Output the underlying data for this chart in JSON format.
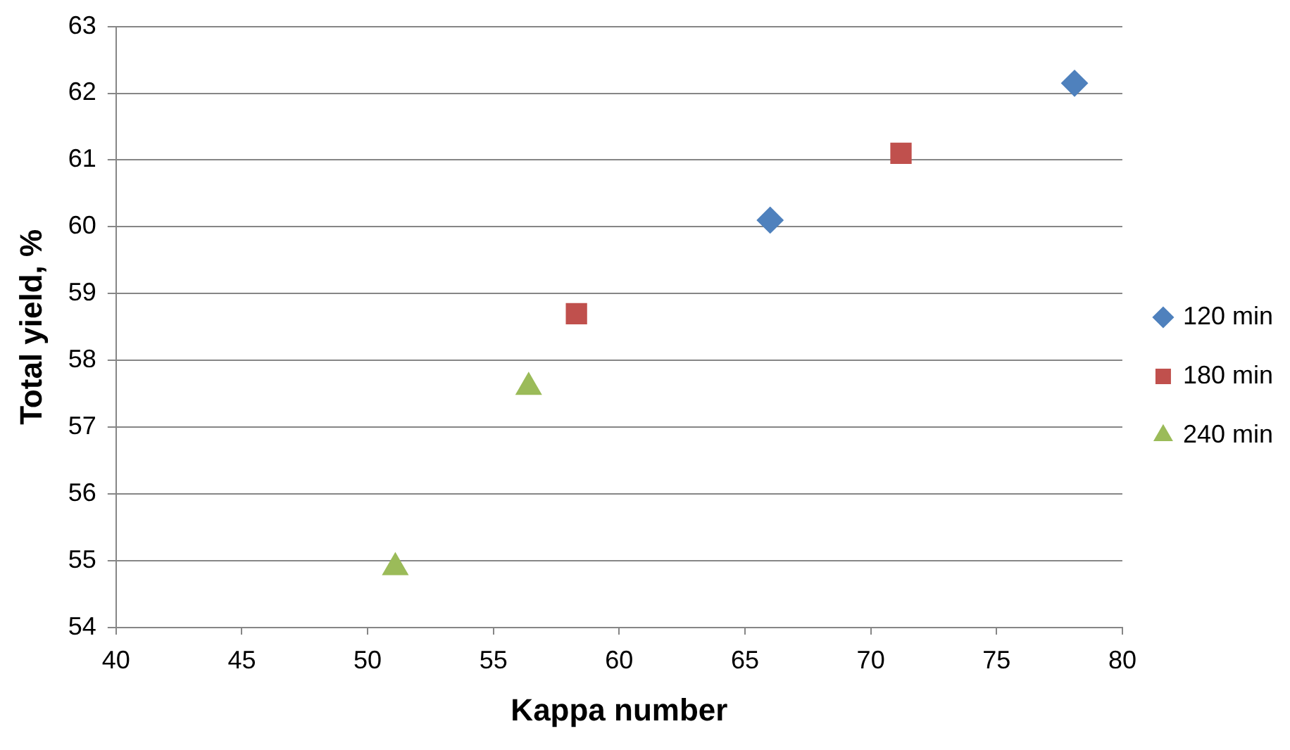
{
  "chart_data": {
    "type": "scatter",
    "xlabel": "Kappa number",
    "ylabel": "Total yield, %",
    "xlim": [
      40,
      80
    ],
    "xticks": [
      40,
      45,
      50,
      55,
      60,
      65,
      70,
      75,
      80
    ],
    "ylim": [
      54,
      63
    ],
    "yticks": [
      54,
      55,
      56,
      57,
      58,
      59,
      60,
      61,
      62,
      63
    ],
    "grid": "y",
    "legend": "right",
    "series": [
      {
        "name": "120 min",
        "color": "#4f81bd",
        "marker": "diamond",
        "x": [
          66.0,
          78.1
        ],
        "values": [
          60.1,
          62.15
        ]
      },
      {
        "name": "180 min",
        "color": "#c0504d",
        "marker": "square",
        "x": [
          58.3,
          71.2
        ],
        "values": [
          58.7,
          61.1
        ]
      },
      {
        "name": "240 min",
        "color": "#9bbb59",
        "marker": "triangle",
        "x": [
          51.1,
          56.4
        ],
        "values": [
          54.9,
          57.6
        ]
      }
    ]
  }
}
